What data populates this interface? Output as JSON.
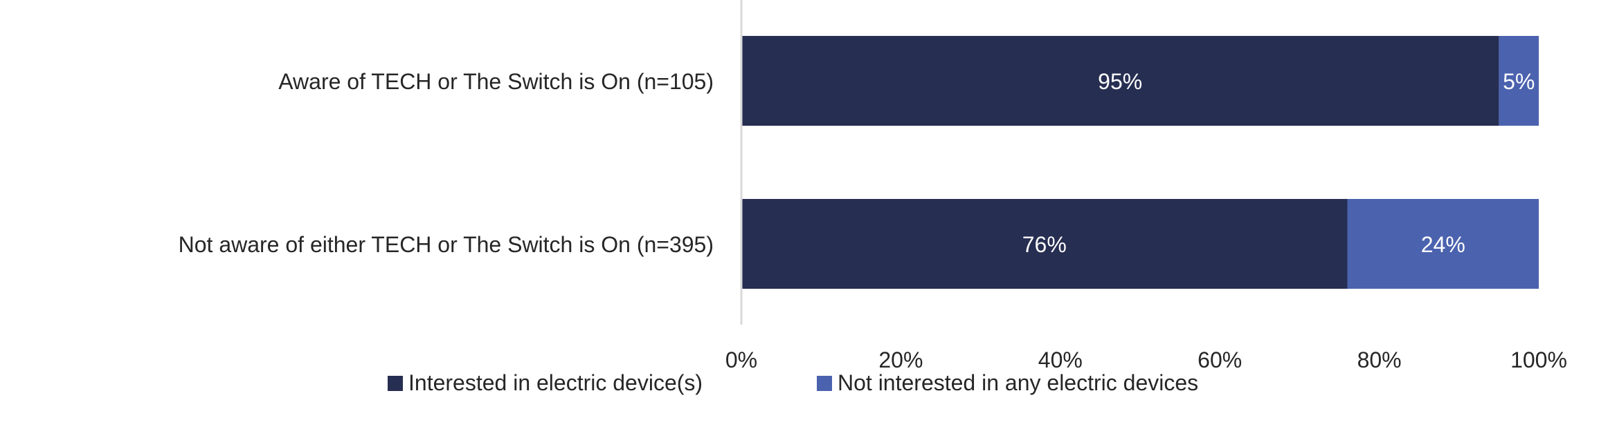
{
  "chart_data": {
    "type": "bar",
    "orientation": "horizontal",
    "stacked": true,
    "categories": [
      "Aware of TECH or The Switch is On (n=105)",
      "Not aware of either TECH or The Switch is On (n=395)"
    ],
    "series": [
      {
        "name": "Interested in electric device(s)",
        "values": [
          95,
          76
        ],
        "labels": [
          "95%",
          "76%"
        ],
        "color": "#262e52"
      },
      {
        "name": "Not interested in any electric devices",
        "values": [
          5,
          24
        ],
        "labels": [
          "5%",
          "24%"
        ],
        "color": "#4b62ae"
      }
    ],
    "x_ticks": [
      "0%",
      "20%",
      "40%",
      "60%",
      "80%",
      "100%"
    ],
    "xlim": [
      0,
      100
    ],
    "grid": false,
    "legend_position": "bottom"
  },
  "colors": {
    "axis_line": "#d9d9d9",
    "text": "#262626",
    "bar_label": "#ffffff"
  }
}
